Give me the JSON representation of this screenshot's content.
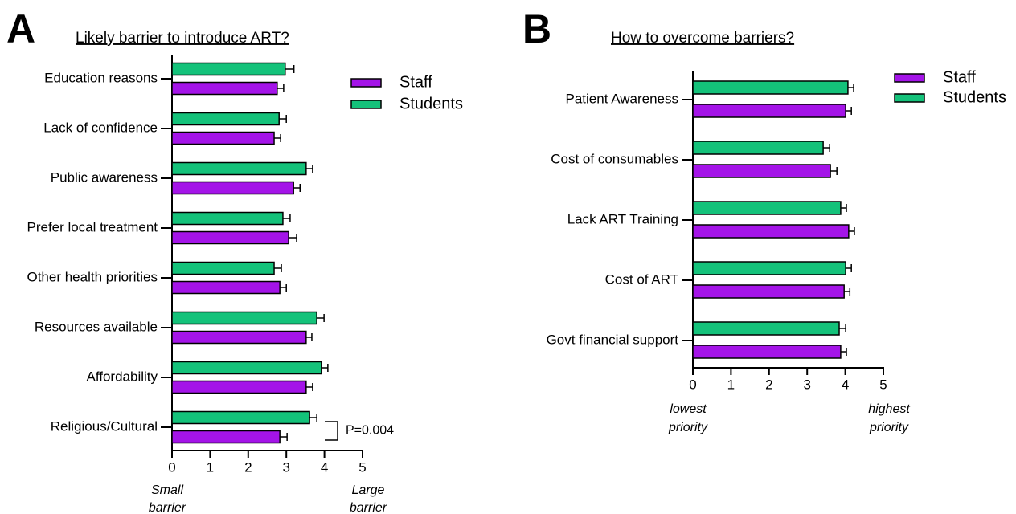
{
  "chart_data": [
    {
      "type": "bar",
      "orientation": "horizontal",
      "panel_label": "A",
      "title": "Likely barrier to introduce ART?",
      "categories": [
        "Education reasons",
        "Lack of confidence",
        "Public awareness",
        "Prefer local treatment",
        "Other health priorities",
        "Resources available",
        "Affordability",
        "Religious/Cultural"
      ],
      "series": [
        {
          "name": "Staff",
          "color": "#a414e8",
          "values": [
            2.76,
            2.68,
            3.19,
            3.06,
            2.83,
            3.52,
            3.52,
            2.83
          ],
          "errors": [
            0.17,
            0.17,
            0.17,
            0.21,
            0.17,
            0.15,
            0.17,
            0.19
          ]
        },
        {
          "name": "Students",
          "color": "#14c27a",
          "values": [
            2.97,
            2.81,
            3.52,
            2.91,
            2.68,
            3.8,
            3.92,
            3.61
          ],
          "errors": [
            0.23,
            0.19,
            0.17,
            0.19,
            0.19,
            0.19,
            0.17,
            0.19
          ]
        }
      ],
      "xlim": [
        0,
        5
      ],
      "xticks": [
        0,
        1,
        2,
        3,
        4,
        5
      ],
      "x_note_low": [
        "Small",
        "barrier"
      ],
      "x_note_high": [
        "Large",
        "barrier"
      ],
      "annotation": "P=0.004",
      "legend": "upper right"
    },
    {
      "type": "bar",
      "orientation": "horizontal",
      "panel_label": "B",
      "title": "How to overcome barriers?",
      "categories": [
        "Patient Awareness",
        "Cost of consumables",
        "Lack ART Training",
        "Cost of ART",
        "Govt financial support"
      ],
      "series": [
        {
          "name": "Staff",
          "color": "#a414e8",
          "values": [
            4.01,
            3.61,
            4.09,
            3.97,
            3.88
          ],
          "errors": [
            0.15,
            0.17,
            0.15,
            0.15,
            0.15
          ]
        },
        {
          "name": "Students",
          "color": "#14c27a",
          "values": [
            4.07,
            3.42,
            3.88,
            4.01,
            3.84
          ],
          "errors": [
            0.15,
            0.17,
            0.15,
            0.15,
            0.17
          ]
        }
      ],
      "xlim": [
        0,
        5
      ],
      "xticks": [
        0,
        1,
        2,
        3,
        4,
        5
      ],
      "x_note_low": [
        "lowest",
        "priority"
      ],
      "x_note_high": [
        "highest",
        "priority"
      ],
      "legend": "upper right"
    }
  ]
}
